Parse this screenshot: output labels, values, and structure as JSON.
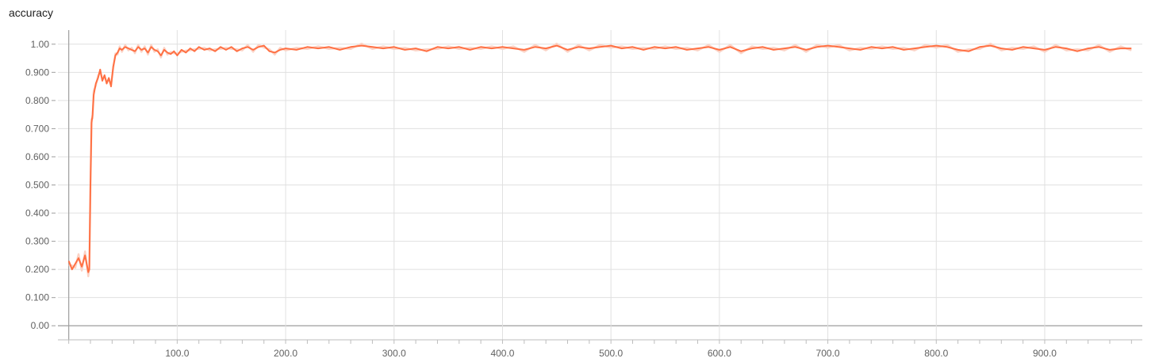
{
  "chart_data": {
    "type": "line",
    "title": "accuracy",
    "xlabel": "",
    "ylabel": "",
    "xlim": [
      -10,
      990
    ],
    "ylim": [
      -0.05,
      1.05
    ],
    "x_ticks": [
      100,
      200,
      300,
      400,
      500,
      600,
      700,
      800,
      900
    ],
    "x_tick_labels": [
      "100.0",
      "200.0",
      "300.0",
      "400.0",
      "500.0",
      "600.0",
      "700.0",
      "800.0",
      "900.0"
    ],
    "y_ticks": [
      0,
      0.1,
      0.2,
      0.3,
      0.4,
      0.5,
      0.6,
      0.7,
      0.8,
      0.9,
      1.0
    ],
    "y_tick_labels": [
      "0.00",
      "0.100",
      "0.200",
      "0.300",
      "0.400",
      "0.500",
      "0.600",
      "0.700",
      "0.800",
      "0.900",
      "1.00"
    ],
    "grid": true,
    "line_color": "#ff7043",
    "raw_color": "#fbd3c6",
    "series": [
      {
        "x": [
          0,
          3,
          6,
          9,
          12,
          15,
          18,
          19,
          20,
          21,
          22,
          23,
          25,
          27,
          29,
          31,
          33,
          35,
          37,
          39,
          41,
          43,
          45,
          47,
          49,
          52,
          55,
          58,
          61,
          64,
          67,
          70,
          73,
          76,
          79,
          82,
          85,
          88,
          91,
          94,
          97,
          100,
          104,
          108,
          112,
          116,
          120,
          125,
          130,
          135,
          140,
          145,
          150,
          155,
          160,
          165,
          170,
          175,
          180,
          185,
          190,
          195,
          200,
          210,
          220,
          230,
          240,
          250,
          260,
          270,
          280,
          290,
          300,
          310,
          320,
          330,
          340,
          350,
          360,
          370,
          380,
          390,
          400,
          410,
          420,
          430,
          440,
          450,
          460,
          470,
          480,
          490,
          500,
          510,
          520,
          530,
          540,
          550,
          560,
          570,
          580,
          590,
          600,
          610,
          620,
          630,
          640,
          650,
          660,
          670,
          680,
          690,
          700,
          710,
          720,
          730,
          740,
          750,
          760,
          770,
          780,
          790,
          800,
          810,
          820,
          830,
          840,
          850,
          860,
          870,
          880,
          890,
          900,
          910,
          920,
          930,
          940,
          950,
          960,
          970,
          980
        ],
        "y": [
          0.23,
          0.2,
          0.22,
          0.24,
          0.21,
          0.25,
          0.19,
          0.2,
          0.5,
          0.72,
          0.75,
          0.82,
          0.86,
          0.88,
          0.91,
          0.87,
          0.89,
          0.86,
          0.88,
          0.85,
          0.92,
          0.96,
          0.97,
          0.985,
          0.98,
          0.99,
          0.985,
          0.98,
          0.975,
          0.99,
          0.98,
          0.985,
          0.97,
          0.99,
          0.98,
          0.975,
          0.96,
          0.98,
          0.97,
          0.965,
          0.975,
          0.96,
          0.98,
          0.97,
          0.985,
          0.975,
          0.99,
          0.98,
          0.985,
          0.975,
          0.99,
          0.98,
          0.99,
          0.975,
          0.985,
          0.99,
          0.98,
          0.99,
          0.995,
          0.975,
          0.97,
          0.98,
          0.985,
          0.98,
          0.99,
          0.985,
          0.99,
          0.98,
          0.99,
          0.995,
          0.99,
          0.985,
          0.99,
          0.98,
          0.985,
          0.975,
          0.99,
          0.985,
          0.99,
          0.98,
          0.99,
          0.985,
          0.99,
          0.985,
          0.98,
          0.99,
          0.985,
          0.995,
          0.98,
          0.99,
          0.985,
          0.99,
          0.995,
          0.985,
          0.99,
          0.98,
          0.99,
          0.985,
          0.99,
          0.98,
          0.985,
          0.99,
          0.98,
          0.99,
          0.975,
          0.985,
          0.99,
          0.98,
          0.985,
          0.99,
          0.98,
          0.99,
          0.995,
          0.99,
          0.985,
          0.98,
          0.99,
          0.985,
          0.99,
          0.98,
          0.985,
          0.99,
          0.995,
          0.99,
          0.98,
          0.975,
          0.99,
          0.995,
          0.985,
          0.98,
          0.99,
          0.985,
          0.98,
          0.99,
          0.985,
          0.975,
          0.985,
          0.99,
          0.98,
          0.985,
          0.985
        ]
      }
    ]
  }
}
